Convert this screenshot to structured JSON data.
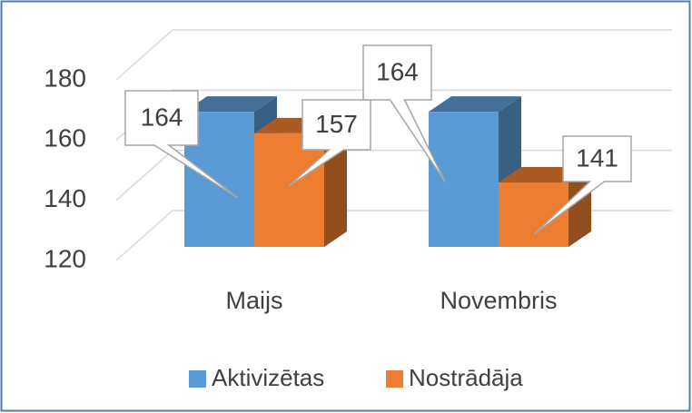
{
  "chart_data": {
    "type": "bar3d",
    "categories": [
      "Maijs",
      "Novembris"
    ],
    "series": [
      {
        "name": "Aktivizētas",
        "color": "#5b9bd5",
        "values": [
          164,
          164
        ]
      },
      {
        "name": "Nostrādāja",
        "color": "#ed7d31",
        "values": [
          157,
          141
        ]
      }
    ],
    "ylim": [
      120,
      180
    ],
    "yticks": [
      120,
      140,
      160,
      180
    ],
    "grid": true,
    "legend": "bottom"
  }
}
